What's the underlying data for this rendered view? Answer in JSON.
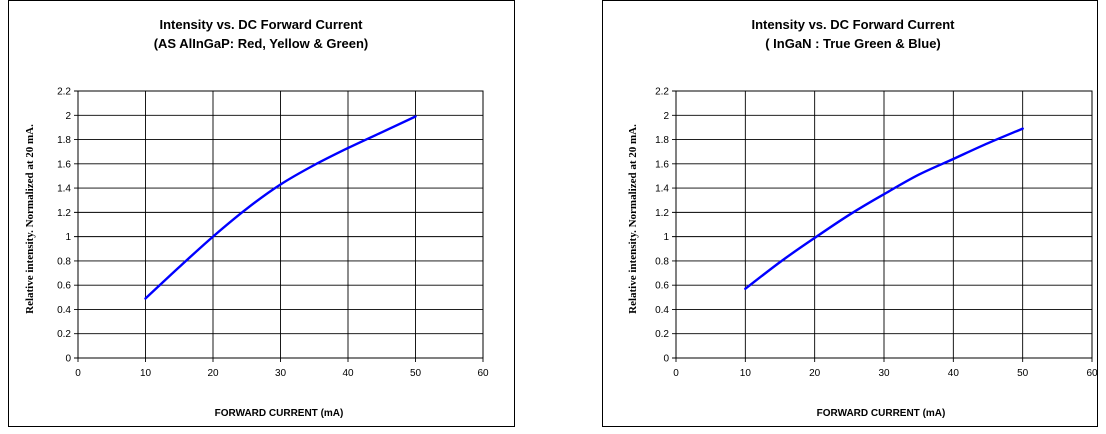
{
  "chart_data": [
    {
      "type": "line",
      "title": "Intensity vs. DC Forward Current",
      "subtitle": "(AS AlInGaP: Red, Yellow & Green)",
      "xlabel": "FORWARD CURRENT (mA)",
      "ylabel": "Relative intensity. Normalized at 20 mA.",
      "xlim": [
        0,
        60
      ],
      "ylim": [
        0,
        2.2
      ],
      "xticks": [
        "0",
        "10",
        "20",
        "30",
        "40",
        "50",
        "60"
      ],
      "yticks": [
        "0",
        "0.2",
        "0.4",
        "0.6",
        "0.8",
        "1",
        "1.2",
        "1.4",
        "1.6",
        "1.8",
        "2",
        "2.2"
      ],
      "grid": true,
      "series_color": "#0000ff",
      "series": [
        {
          "x": [
            10,
            15,
            20,
            25,
            30,
            35,
            40,
            45,
            50
          ],
          "y": [
            0.49,
            0.75,
            1.0,
            1.23,
            1.43,
            1.59,
            1.73,
            1.86,
            1.99
          ]
        }
      ]
    },
    {
      "type": "line",
      "title": "Intensity vs. DC Forward Current",
      "subtitle": "( InGaN : True Green & Blue)",
      "xlabel": "FORWARD CURRENT (mA)",
      "ylabel": "Relative intensity. Normalized at 20 mA.",
      "xlim": [
        0,
        60
      ],
      "ylim": [
        0,
        2.2
      ],
      "xticks": [
        "0",
        "10",
        "20",
        "30",
        "40",
        "50",
        "60"
      ],
      "yticks": [
        "0",
        "0.2",
        "0.4",
        "0.6",
        "0.8",
        "1",
        "1.2",
        "1.4",
        "1.6",
        "1.8",
        "2",
        "2.2"
      ],
      "grid": true,
      "series_color": "#0000ff",
      "series": [
        {
          "x": [
            10,
            15,
            20,
            25,
            30,
            35,
            40,
            45,
            50
          ],
          "y": [
            0.57,
            0.79,
            0.99,
            1.18,
            1.35,
            1.51,
            1.64,
            1.77,
            1.89
          ]
        }
      ]
    }
  ]
}
